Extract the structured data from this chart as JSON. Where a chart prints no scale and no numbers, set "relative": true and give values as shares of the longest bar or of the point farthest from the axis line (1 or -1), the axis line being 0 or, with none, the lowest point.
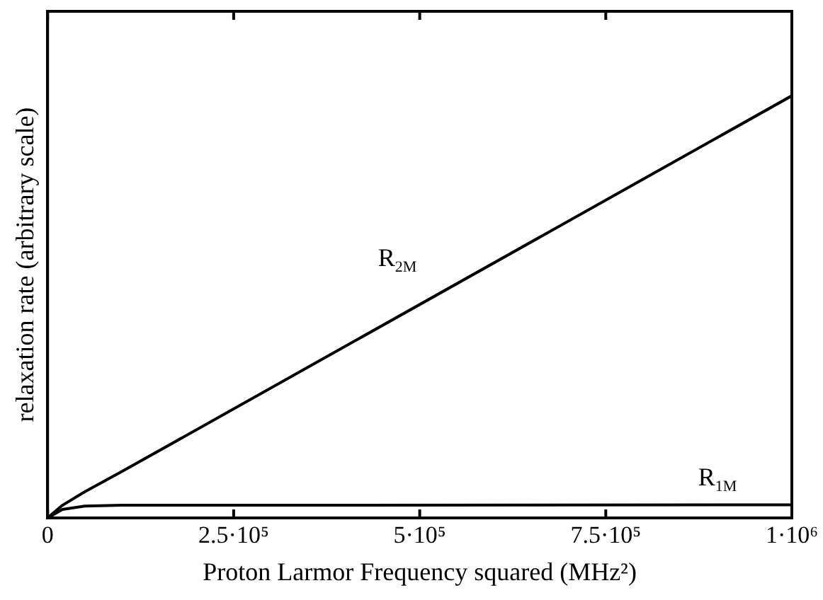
{
  "chart_data": {
    "type": "line",
    "relative": true,
    "xlabel": "Proton Larmor Frequency squared (MHz²)",
    "ylabel": "relaxation rate (arbitrary scale)",
    "xlim": [
      0,
      1000000
    ],
    "xticks": [
      0,
      {
        "value": 250000,
        "label": "2.5·10⁵"
      },
      {
        "value": 500000,
        "label": "5·10⁵"
      },
      {
        "value": 750000,
        "label": "7.5·10⁵"
      },
      {
        "value": 1000000,
        "label": "1·10⁶"
      }
    ],
    "x": [
      0,
      20000,
      50000,
      100000,
      1000000
    ],
    "series": [
      {
        "name": "R$_{2M}$",
        "color": "#000000",
        "values": [
          0,
          0.03,
          0.062,
          0.11,
          1
        ]
      },
      {
        "name": "R$_{1M}$",
        "color": "#000000",
        "values": [
          0,
          0.02,
          0.028,
          0.03,
          0.031
        ]
      }
    ],
    "grid": false,
    "legend": false,
    "marker": "none",
    "line_style": "solid"
  }
}
